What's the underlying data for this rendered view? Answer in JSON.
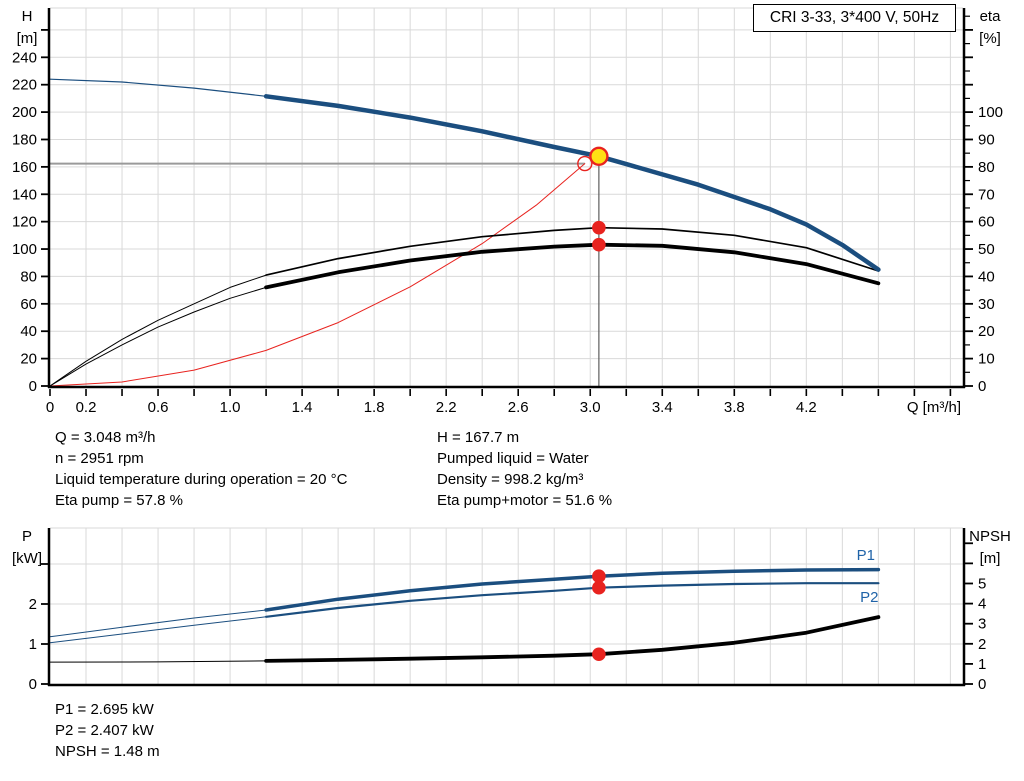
{
  "title": "CRI 3-33, 3*400 V, 50Hz",
  "colors": {
    "curve_blue": "#1b4e7f",
    "label_blue": "#1f63a8",
    "red": "#e8231f",
    "marker_yellow": "#ffe014",
    "grid": "#d9d9d9",
    "crosshair_h": "#9a9a9a",
    "crosshair_v": "#5e5e5e",
    "axis": "#000000",
    "background": "#ffffff"
  },
  "info_mid_left": [
    "Q = 3.048 m³/h",
    "n = 2951 rpm",
    "Liquid temperature during operation = 20 °C",
    "Eta pump = 57.8 %"
  ],
  "info_mid_right": [
    "H = 167.7 m",
    "Pumped liquid = Water",
    "Density = 998.2 kg/m³",
    "Eta pump+motor = 51.6 %"
  ],
  "info_bottom": [
    "P1 = 2.695 kW",
    "P2 = 2.407 kW",
    "NPSH = 1.48 m"
  ],
  "chart_data": [
    {
      "name": "head-capacity-chart",
      "type": "line",
      "title": "CRI 3-33, 3*400 V, 50Hz",
      "x_axis": {
        "label": "Q [m³/h]",
        "min": 0,
        "max": 5.07,
        "grid_step": 0.2,
        "tick_step": 0.2,
        "ticks": true,
        "labeled_ticks": [
          0,
          0.2,
          0.6,
          1.0,
          1.4,
          1.8,
          2.2,
          2.6,
          3.0,
          3.4,
          3.8,
          4.2
        ]
      },
      "left_axis": {
        "label": [
          "H",
          "[m]"
        ],
        "min": 0,
        "max": 276,
        "major_step": 20,
        "label_max": 240
      },
      "right_axis": {
        "label": [
          "eta",
          "[%]"
        ],
        "min": 0,
        "max": 138,
        "major_step": 10,
        "minor_step": 5,
        "label_max": 100
      },
      "crosshair": {
        "h_value": 162.4,
        "h_q_end": 2.97,
        "v_q": 3.048,
        "v_value_top": 167.7
      },
      "series": [
        {
          "name": "system-curve",
          "axis": "left",
          "color": "#e8231f",
          "segments": [
            {
              "width": 1,
              "points": [
                [
                  0,
                  0
                ],
                [
                  0.4,
                  2.9
                ],
                [
                  0.8,
                  11.6
                ],
                [
                  1.2,
                  26
                ],
                [
                  1.6,
                  46.3
                ],
                [
                  2.0,
                  72.4
                ],
                [
                  2.4,
                  104
                ],
                [
                  2.7,
                  132
                ],
                [
                  2.97,
                  162.4
                ]
              ]
            }
          ]
        },
        {
          "name": "eta-pump-motor-curve",
          "axis": "right",
          "color": "#000000",
          "segments": [
            {
              "width": 1,
              "points": [
                [
                  0,
                  0
                ],
                [
                  0.2,
                  8
                ],
                [
                  0.4,
                  15
                ],
                [
                  0.6,
                  21.5
                ],
                [
                  0.8,
                  27
                ],
                [
                  1.0,
                  32
                ],
                [
                  1.2,
                  36
                ]
              ]
            },
            {
              "width": 3.8,
              "points": [
                [
                  1.2,
                  36
                ],
                [
                  1.6,
                  41.5
                ],
                [
                  2.0,
                  45.8
                ],
                [
                  2.4,
                  49
                ],
                [
                  2.8,
                  50.9
                ],
                [
                  3.048,
                  51.6
                ],
                [
                  3.4,
                  51.2
                ],
                [
                  3.8,
                  48.8
                ],
                [
                  4.2,
                  44.5
                ],
                [
                  4.6,
                  37.5
                ]
              ]
            }
          ]
        },
        {
          "name": "eta-pump-curve",
          "axis": "right",
          "color": "#000000",
          "segments": [
            {
              "width": 1,
              "points": [
                [
                  0,
                  0
                ],
                [
                  0.2,
                  9
                ],
                [
                  0.4,
                  17
                ],
                [
                  0.6,
                  24
                ],
                [
                  0.8,
                  30
                ],
                [
                  1.0,
                  36
                ],
                [
                  1.2,
                  40.5
                ]
              ]
            },
            {
              "width": 1.7,
              "points": [
                [
                  1.2,
                  40.5
                ],
                [
                  1.6,
                  46.5
                ],
                [
                  2.0,
                  51
                ],
                [
                  2.4,
                  54.5
                ],
                [
                  2.8,
                  56.8
                ],
                [
                  3.048,
                  57.8
                ],
                [
                  3.4,
                  57.3
                ],
                [
                  3.8,
                  55
                ],
                [
                  4.2,
                  50.5
                ],
                [
                  4.6,
                  42
                ]
              ]
            }
          ]
        },
        {
          "name": "head-curve",
          "axis": "left",
          "color": "#1b4e7f",
          "segments": [
            {
              "width": 1.2,
              "points": [
                [
                  0,
                  224
                ],
                [
                  0.4,
                  222
                ],
                [
                  0.8,
                  217.5
                ],
                [
                  1.2,
                  211.5
                ]
              ]
            },
            {
              "width": 4.5,
              "points": [
                [
                  1.2,
                  211.5
                ],
                [
                  1.6,
                  204.5
                ],
                [
                  2.0,
                  196
                ],
                [
                  2.4,
                  186
                ],
                [
                  2.8,
                  174.5
                ],
                [
                  3.048,
                  167.7
                ],
                [
                  3.2,
                  162
                ],
                [
                  3.6,
                  147
                ],
                [
                  3.8,
                  138
                ],
                [
                  4.0,
                  129
                ],
                [
                  4.2,
                  118
                ],
                [
                  4.4,
                  103
                ],
                [
                  4.6,
                  85
                ]
              ]
            }
          ]
        }
      ],
      "markers": [
        {
          "name": "requested-duty-point",
          "type": "open-circle",
          "q": 2.97,
          "value": 162.4,
          "axis": "left",
          "stroke": "#e8231f"
        },
        {
          "name": "eta-pump-point",
          "type": "dot",
          "q": 3.048,
          "value": 57.8,
          "axis": "right",
          "fill": "#e8231f"
        },
        {
          "name": "eta-pump-motor-point",
          "type": "dot",
          "q": 3.048,
          "value": 51.6,
          "axis": "right",
          "fill": "#e8231f"
        },
        {
          "name": "duty-point",
          "type": "ring-dot",
          "q": 3.048,
          "value": 167.7,
          "axis": "left",
          "fill": "#ffe014",
          "stroke": "#e8231f",
          "interactable": true
        }
      ],
      "annotations": []
    },
    {
      "name": "power-npsh-chart",
      "type": "line",
      "x_axis": {
        "label": "",
        "min": 0,
        "max": 5.07,
        "grid_step": 0.2,
        "ticks": false,
        "labeled_ticks": []
      },
      "left_axis": {
        "label": [
          "P",
          "[kW]"
        ],
        "min": 0,
        "max": 3.9,
        "major_step": 1,
        "label_max": 2
      },
      "right_axis": {
        "label": [
          "NPSH",
          "[m]"
        ],
        "min": 0,
        "max": 7.76,
        "major_step": 1,
        "label_max": 5
      },
      "series": [
        {
          "name": "p2-curve",
          "axis": "left",
          "color": "#1b4e7f",
          "segments": [
            {
              "width": 1,
              "points": [
                [
                  0,
                  1.03
                ],
                [
                  0.4,
                  1.25
                ],
                [
                  0.8,
                  1.47
                ],
                [
                  1.2,
                  1.68
                ]
              ]
            },
            {
              "width": 2.2,
              "points": [
                [
                  1.2,
                  1.68
                ],
                [
                  1.6,
                  1.9
                ],
                [
                  2.0,
                  2.08
                ],
                [
                  2.4,
                  2.22
                ],
                [
                  2.8,
                  2.33
                ],
                [
                  3.048,
                  2.407
                ],
                [
                  3.4,
                  2.46
                ],
                [
                  3.8,
                  2.5
                ],
                [
                  4.2,
                  2.52
                ],
                [
                  4.6,
                  2.52
                ]
              ]
            }
          ]
        },
        {
          "name": "p1-curve",
          "axis": "left",
          "color": "#1b4e7f",
          "segments": [
            {
              "width": 1,
              "points": [
                [
                  0,
                  1.18
                ],
                [
                  0.4,
                  1.42
                ],
                [
                  0.8,
                  1.65
                ],
                [
                  1.2,
                  1.85
                ]
              ]
            },
            {
              "width": 3.5,
              "points": [
                [
                  1.2,
                  1.85
                ],
                [
                  1.6,
                  2.12
                ],
                [
                  2.0,
                  2.33
                ],
                [
                  2.4,
                  2.5
                ],
                [
                  2.8,
                  2.62
                ],
                [
                  3.048,
                  2.695
                ],
                [
                  3.4,
                  2.77
                ],
                [
                  3.8,
                  2.82
                ],
                [
                  4.2,
                  2.85
                ],
                [
                  4.6,
                  2.86
                ]
              ]
            }
          ]
        },
        {
          "name": "npsh-curve",
          "axis": "right",
          "color": "#000000",
          "segments": [
            {
              "width": 1,
              "points": [
                [
                  0,
                  1.09
                ],
                [
                  0.6,
                  1.1
                ],
                [
                  1.2,
                  1.15
                ]
              ]
            },
            {
              "width": 3.8,
              "points": [
                [
                  1.2,
                  1.15
                ],
                [
                  1.6,
                  1.2
                ],
                [
                  2.0,
                  1.26
                ],
                [
                  2.4,
                  1.33
                ],
                [
                  2.8,
                  1.41
                ],
                [
                  3.048,
                  1.48
                ],
                [
                  3.4,
                  1.7
                ],
                [
                  3.8,
                  2.05
                ],
                [
                  4.2,
                  2.55
                ],
                [
                  4.6,
                  3.33
                ]
              ]
            }
          ]
        }
      ],
      "markers": [
        {
          "name": "p1-point",
          "type": "dot",
          "q": 3.048,
          "value": 2.695,
          "axis": "left",
          "fill": "#e8231f"
        },
        {
          "name": "p2-point",
          "type": "dot",
          "q": 3.048,
          "value": 2.407,
          "axis": "left",
          "fill": "#e8231f"
        },
        {
          "name": "npsh-point",
          "type": "dot",
          "q": 3.048,
          "value": 1.48,
          "axis": "right",
          "fill": "#e8231f"
        }
      ],
      "annotations": [
        {
          "text": "P1",
          "q": 4.53,
          "value": 3.1,
          "axis": "left",
          "color": "#1f63a8"
        },
        {
          "text": "P2",
          "q": 4.55,
          "value": 2.05,
          "axis": "left",
          "color": "#1f63a8"
        }
      ]
    }
  ]
}
